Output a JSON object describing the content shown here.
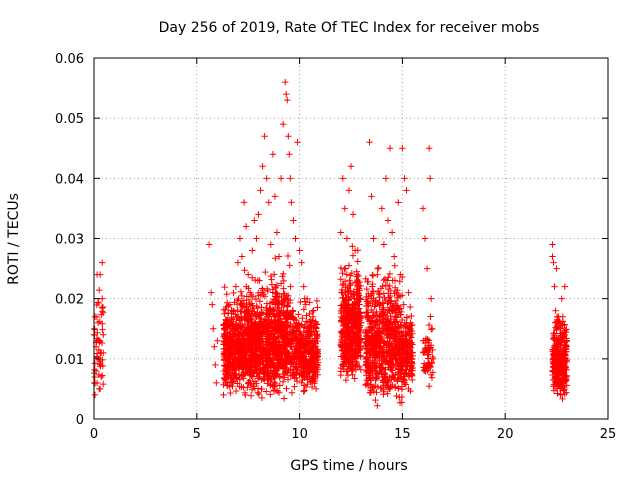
{
  "chart_data": {
    "type": "scatter",
    "title": "Day 256 of 2019, Rate Of TEC Index for receiver mobs",
    "xlabel": "GPS time / hours",
    "ylabel": "ROTI / TECUs",
    "xlim": [
      0,
      25
    ],
    "ylim": [
      0,
      0.06
    ],
    "xticks": [
      "0",
      "5",
      "10",
      "15",
      "20",
      "25"
    ],
    "yticks": [
      "0",
      "0.01",
      "0.02",
      "0.03",
      "0.04",
      "0.05",
      "0.06"
    ],
    "grid": true,
    "marker": "plus",
    "color": "#ff0000",
    "series": [
      {
        "points": [
          [
            0.0,
            0.014
          ],
          [
            0.05,
            0.017
          ],
          [
            0.1,
            0.012
          ],
          [
            0.1,
            0.008
          ],
          [
            0.15,
            0.006
          ],
          [
            0.15,
            0.024
          ],
          [
            0.2,
            0.01
          ],
          [
            0.2,
            0.016
          ],
          [
            0.25,
            0.005
          ],
          [
            0.25,
            0.013
          ],
          [
            0.3,
            0.009
          ],
          [
            0.3,
            0.024
          ],
          [
            0.35,
            0.007
          ],
          [
            0.35,
            0.011
          ],
          [
            0.4,
            0.02
          ],
          [
            0.4,
            0.026
          ],
          [
            0.45,
            0.014
          ],
          [
            0.05,
            0.004
          ],
          [
            0.3,
            0.005
          ],
          [
            0.45,
            0.011
          ],
          [
            5.6,
            0.029
          ],
          [
            5.7,
            0.021
          ],
          [
            5.75,
            0.019
          ],
          [
            5.8,
            0.015
          ],
          [
            5.85,
            0.012
          ],
          [
            5.9,
            0.009
          ],
          [
            5.95,
            0.006
          ],
          [
            6.0,
            0.013
          ],
          [
            6.3,
            0.004
          ],
          [
            6.4,
            0.006
          ],
          [
            6.5,
            0.009
          ],
          [
            6.6,
            0.012
          ],
          [
            6.7,
            0.015
          ],
          [
            6.8,
            0.018
          ],
          [
            6.9,
            0.022
          ],
          [
            7.0,
            0.026
          ],
          [
            7.1,
            0.03
          ],
          [
            7.2,
            0.027
          ],
          [
            7.3,
            0.036
          ],
          [
            7.4,
            0.032
          ],
          [
            7.5,
            0.024
          ],
          [
            7.6,
            0.019
          ],
          [
            7.7,
            0.028
          ],
          [
            7.8,
            0.033
          ],
          [
            7.9,
            0.03
          ],
          [
            8.0,
            0.034
          ],
          [
            8.1,
            0.038
          ],
          [
            8.2,
            0.042
          ],
          [
            8.3,
            0.047
          ],
          [
            8.4,
            0.04
          ],
          [
            8.5,
            0.036
          ],
          [
            8.6,
            0.029
          ],
          [
            8.7,
            0.044
          ],
          [
            8.8,
            0.037
          ],
          [
            8.9,
            0.031
          ],
          [
            9.0,
            0.027
          ],
          [
            9.1,
            0.04
          ],
          [
            9.2,
            0.049
          ],
          [
            9.3,
            0.056
          ],
          [
            9.35,
            0.054
          ],
          [
            9.4,
            0.053
          ],
          [
            9.45,
            0.047
          ],
          [
            9.5,
            0.044
          ],
          [
            9.55,
            0.04
          ],
          [
            9.6,
            0.036
          ],
          [
            9.7,
            0.033
          ],
          [
            9.8,
            0.03
          ],
          [
            9.9,
            0.046
          ],
          [
            10.0,
            0.028
          ],
          [
            10.1,
            0.026
          ],
          [
            10.2,
            0.022
          ],
          [
            10.3,
            0.019
          ],
          [
            10.4,
            0.016
          ],
          [
            10.5,
            0.013
          ],
          [
            10.6,
            0.01
          ],
          [
            10.7,
            0.007
          ],
          [
            10.8,
            0.005
          ],
          [
            12.0,
            0.031
          ],
          [
            12.1,
            0.04
          ],
          [
            12.2,
            0.035
          ],
          [
            12.3,
            0.03
          ],
          [
            12.4,
            0.038
          ],
          [
            12.5,
            0.042
          ],
          [
            12.6,
            0.034
          ],
          [
            12.7,
            0.028
          ],
          [
            12.8,
            0.024
          ],
          [
            12.9,
            0.02
          ],
          [
            13.0,
            0.016
          ],
          [
            13.2,
            0.012
          ],
          [
            13.4,
            0.046
          ],
          [
            13.5,
            0.037
          ],
          [
            13.6,
            0.03
          ],
          [
            13.8,
            0.025
          ],
          [
            14.0,
            0.035
          ],
          [
            14.1,
            0.029
          ],
          [
            14.2,
            0.04
          ],
          [
            14.3,
            0.033
          ],
          [
            14.4,
            0.045
          ],
          [
            14.5,
            0.031
          ],
          [
            14.6,
            0.027
          ],
          [
            14.8,
            0.036
          ],
          [
            14.9,
            0.024
          ],
          [
            15.0,
            0.045
          ],
          [
            15.1,
            0.04
          ],
          [
            15.2,
            0.038
          ],
          [
            15.3,
            0.021
          ],
          [
            15.4,
            0.016
          ],
          [
            15.5,
            0.011
          ],
          [
            16.0,
            0.035
          ],
          [
            16.1,
            0.03
          ],
          [
            16.2,
            0.025
          ],
          [
            16.3,
            0.045
          ],
          [
            16.35,
            0.04
          ],
          [
            16.4,
            0.02
          ],
          [
            16.45,
            0.015
          ],
          [
            16.5,
            0.01
          ],
          [
            22.3,
            0.029
          ],
          [
            22.35,
            0.026
          ],
          [
            22.4,
            0.022
          ],
          [
            22.45,
            0.018
          ],
          [
            22.5,
            0.015
          ],
          [
            22.55,
            0.012
          ],
          [
            22.6,
            0.009
          ],
          [
            22.65,
            0.006
          ],
          [
            22.7,
            0.004
          ],
          [
            22.75,
            0.02
          ],
          [
            22.8,
            0.017
          ],
          [
            22.85,
            0.014
          ],
          [
            22.9,
            0.01
          ],
          [
            22.95,
            0.007
          ],
          [
            22.5,
            0.025
          ],
          [
            22.3,
            0.027
          ],
          [
            22.8,
            0.005
          ],
          [
            22.9,
            0.022
          ]
        ],
        "clusters": [
          {
            "x": [
              0.0,
              0.45
            ],
            "y": [
              0.004,
              0.026
            ],
            "n": 45
          },
          {
            "x": [
              6.3,
              7.3
            ],
            "y": [
              0.004,
              0.024
            ],
            "n": 420
          },
          {
            "x": [
              7.3,
              8.5
            ],
            "y": [
              0.003,
              0.026
            ],
            "n": 520
          },
          {
            "x": [
              8.5,
              9.6
            ],
            "y": [
              0.003,
              0.028
            ],
            "n": 460
          },
          {
            "x": [
              9.6,
              10.9
            ],
            "y": [
              0.004,
              0.022
            ],
            "n": 420
          },
          {
            "x": [
              12.0,
              13.0
            ],
            "y": [
              0.005,
              0.03
            ],
            "n": 480
          },
          {
            "x": [
              13.2,
              15.0
            ],
            "y": [
              0.002,
              0.028
            ],
            "n": 700
          },
          {
            "x": [
              15.0,
              15.5
            ],
            "y": [
              0.004,
              0.022
            ],
            "n": 150
          },
          {
            "x": [
              16.0,
              16.5
            ],
            "y": [
              0.005,
              0.018
            ],
            "n": 60
          },
          {
            "x": [
              22.3,
              23.0
            ],
            "y": [
              0.003,
              0.02
            ],
            "n": 320
          }
        ]
      }
    ]
  }
}
